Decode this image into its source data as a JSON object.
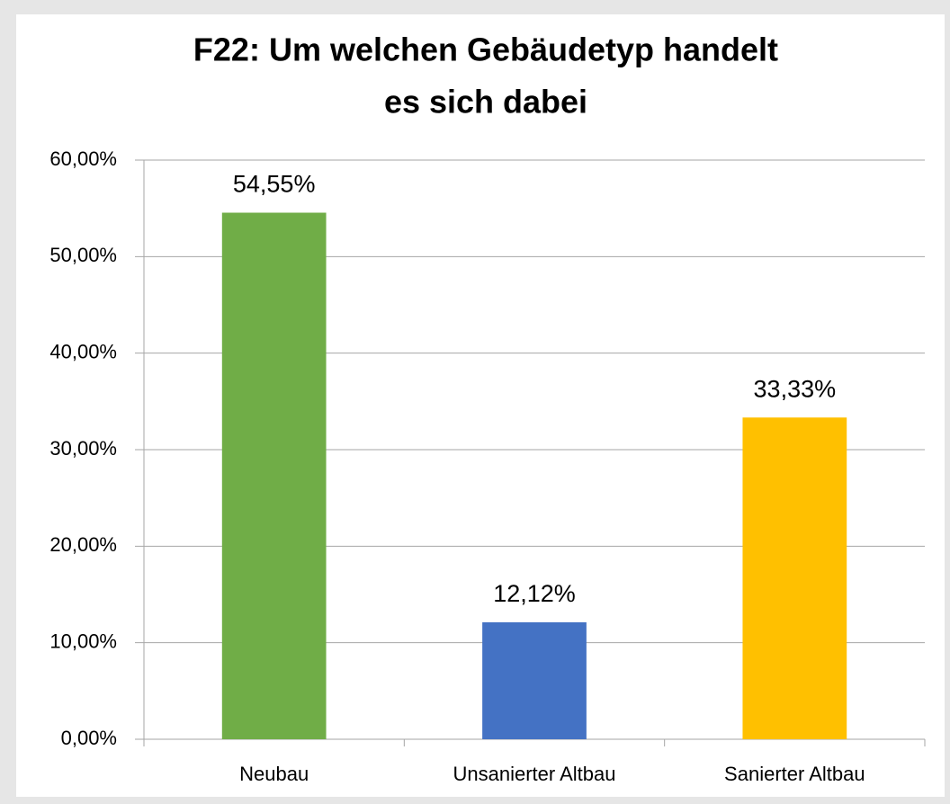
{
  "chart_data": {
    "type": "bar",
    "title": [
      "F22: Um welchen Gebäudetyp handelt",
      "es sich dabei"
    ],
    "categories": [
      "Neubau",
      "Unsanierter Altbau",
      "Sanierter Altbau"
    ],
    "values": [
      54.55,
      12.12,
      33.33
    ],
    "value_labels": [
      "54,55%",
      "12,12%",
      "33,33%"
    ],
    "colors": [
      "#70ad47",
      "#4472c4",
      "#ffc000"
    ],
    "ylim": [
      0,
      60
    ],
    "yticks": [
      {
        "value": 0,
        "label": "0,00%"
      },
      {
        "value": 10,
        "label": "10,00%"
      },
      {
        "value": 20,
        "label": "20,00%"
      },
      {
        "value": 30,
        "label": "30,00%"
      },
      {
        "value": 40,
        "label": "40,00%"
      },
      {
        "value": 50,
        "label": "50,00%"
      },
      {
        "value": 60,
        "label": "60,00%"
      }
    ],
    "grid": true
  }
}
